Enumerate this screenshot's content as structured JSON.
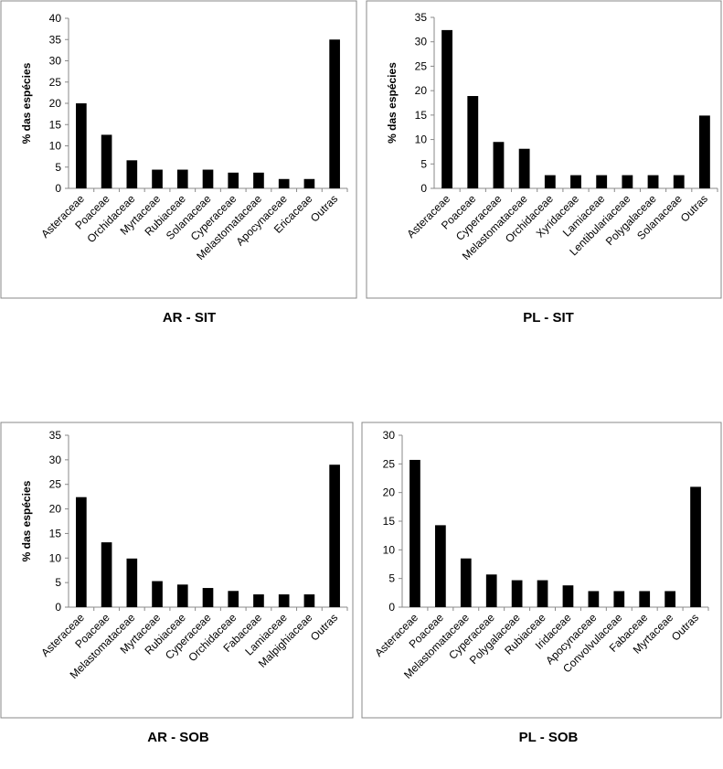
{
  "chart_data": [
    {
      "type": "bar",
      "title": "AR - SIT",
      "ylabel": "% das espécies",
      "color": "#000000",
      "categories": [
        "Asteraceae",
        "Poaceae",
        "Orchidaceae",
        "Myrtaceae",
        "Rubiaceae",
        "Solanaceae",
        "Cyperaceae",
        "Melastomataceae",
        "Apocynaceae",
        "Ericaceae",
        "Outras"
      ],
      "values": [
        20,
        12.6,
        6.6,
        4.4,
        4.4,
        4.4,
        3.7,
        3.7,
        2.2,
        2.2,
        35
      ],
      "ylim": [
        0,
        40
      ],
      "yticks": [
        0,
        5,
        10,
        15,
        20,
        25,
        30,
        35,
        40
      ]
    },
    {
      "type": "bar",
      "title": "PL - SIT",
      "ylabel": "% das espécies",
      "color": "#000000",
      "categories": [
        "Asteraceae",
        "Poaceae",
        "Cyperaceae",
        "Melastomataceae",
        "Orchidaceae",
        "Xyridaceae",
        "Lamiaceae",
        "Lentibulariaceae",
        "Polygalaceae",
        "Solanaceae",
        "Outras"
      ],
      "values": [
        32.4,
        18.9,
        9.5,
        8.1,
        2.7,
        2.7,
        2.7,
        2.7,
        2.7,
        2.7,
        14.9
      ],
      "ylim": [
        0,
        35
      ],
      "yticks": [
        0,
        5,
        10,
        15,
        20,
        25,
        30,
        35
      ]
    },
    {
      "type": "bar",
      "title": "AR - SOB",
      "ylabel": "% das espécies",
      "color": "#000000",
      "categories": [
        "Asteraceae",
        "Poaceae",
        "Melastomataceae",
        "Myrtaceae",
        "Rubiaceae",
        "Cyperaceae",
        "Orchidaceae",
        "Fabaceae",
        "Lamiaceae",
        "Malpighiaceae",
        "Outras"
      ],
      "values": [
        22.4,
        13.2,
        9.9,
        5.3,
        4.6,
        3.9,
        3.3,
        2.6,
        2.6,
        2.6,
        29
      ],
      "ylim": [
        0,
        35
      ],
      "yticks": [
        0,
        5,
        10,
        15,
        20,
        25,
        30,
        35
      ]
    },
    {
      "type": "bar",
      "title": "PL - SOB",
      "color": "#000000",
      "categories": [
        "Asteraceae",
        "Poaceae",
        "Melastomataceae",
        "Cyperaceae",
        "Polygalaceae",
        "Rubiaceae",
        "Iridaceae",
        "Apocynaceae",
        "Convolvulaceae",
        "Fabaceae",
        "Myrtaceae",
        "Outras"
      ],
      "values": [
        25.7,
        14.3,
        8.5,
        5.7,
        4.7,
        4.7,
        3.8,
        2.8,
        2.8,
        2.8,
        2.8,
        21
      ],
      "ylim": [
        0,
        30
      ],
      "yticks": [
        0,
        5,
        10,
        15,
        20,
        25,
        30
      ]
    }
  ]
}
